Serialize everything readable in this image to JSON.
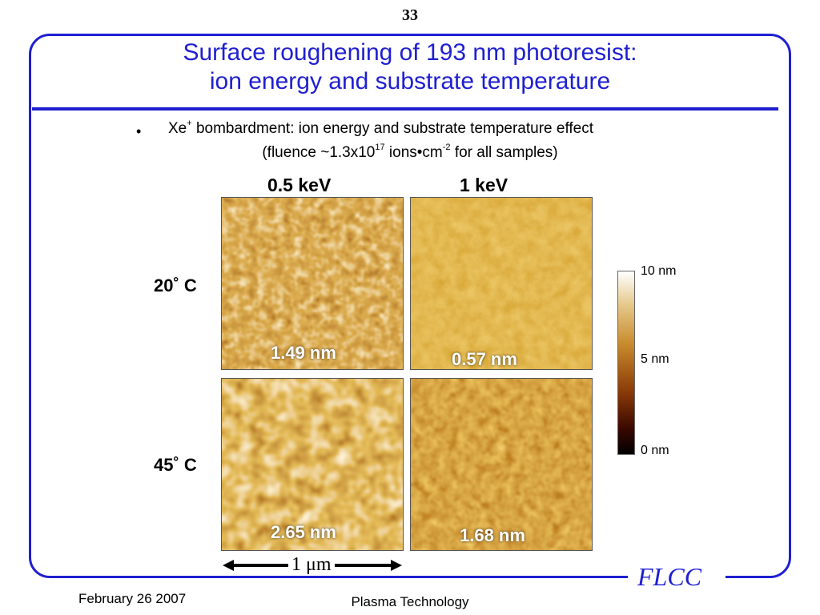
{
  "slide_number": "33",
  "title_line1": "Surface roughening of 193 nm photoresist:",
  "title_line2": "ion energy and substrate temperature",
  "bullet": {
    "symbol": "•",
    "ion": "Xe",
    "ion_charge": "+",
    "text": "bombardment: ion energy and substrate temperature effect",
    "fluence_prefix": "(fluence ~1.3x10",
    "fluence_exp": "17",
    "fluence_unit": "ions•cm",
    "fluence_unit_exp": "-2",
    "fluence_suffix": "for all samples)"
  },
  "columns": [
    "0.5 keV",
    "1 keV"
  ],
  "rows": [
    "20˚ C",
    "45˚ C"
  ],
  "images": [
    {
      "roughness": "1.49 nm"
    },
    {
      "roughness": "0.57 nm"
    },
    {
      "roughness": "2.65 nm"
    },
    {
      "roughness": "1.68 nm"
    }
  ],
  "colorbar": {
    "top": "10 nm",
    "mid": "5 nm",
    "bottom": "0 nm"
  },
  "scale_bar": "1 μm",
  "logo": "FLCC",
  "footer": {
    "date": "February 26 2007",
    "center": "Plasma Technology"
  },
  "colors": {
    "accent": "#1f1fd1"
  }
}
